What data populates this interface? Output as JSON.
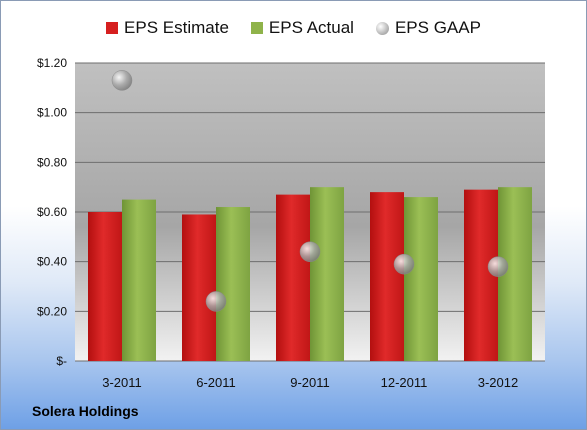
{
  "company": "Solera Holdings",
  "chart_data": {
    "type": "bar",
    "categories": [
      "3-2011",
      "6-2011",
      "9-2011",
      "12-2011",
      "3-2012"
    ],
    "series": [
      {
        "name": "EPS Estimate",
        "kind": "bar",
        "color": "#d61f1f",
        "values": [
          0.6,
          0.59,
          0.67,
          0.68,
          0.69
        ]
      },
      {
        "name": "EPS Actual",
        "kind": "bar",
        "color": "#8fb34a",
        "values": [
          0.65,
          0.62,
          0.7,
          0.66,
          0.7
        ]
      },
      {
        "name": "EPS GAAP",
        "kind": "scatter",
        "color": "#a9a9a9",
        "values": [
          1.13,
          0.24,
          0.44,
          0.39,
          0.38
        ]
      }
    ],
    "ylim": [
      0,
      1.2
    ],
    "yticks": [
      0,
      0.2,
      0.4,
      0.6,
      0.8,
      1.0,
      1.2
    ],
    "ytick_labels": [
      "$-",
      "$0.20",
      "$0.40",
      "$0.60",
      "$0.80",
      "$1.00",
      "$1.20"
    ],
    "grid": true,
    "legend_position": "top"
  }
}
